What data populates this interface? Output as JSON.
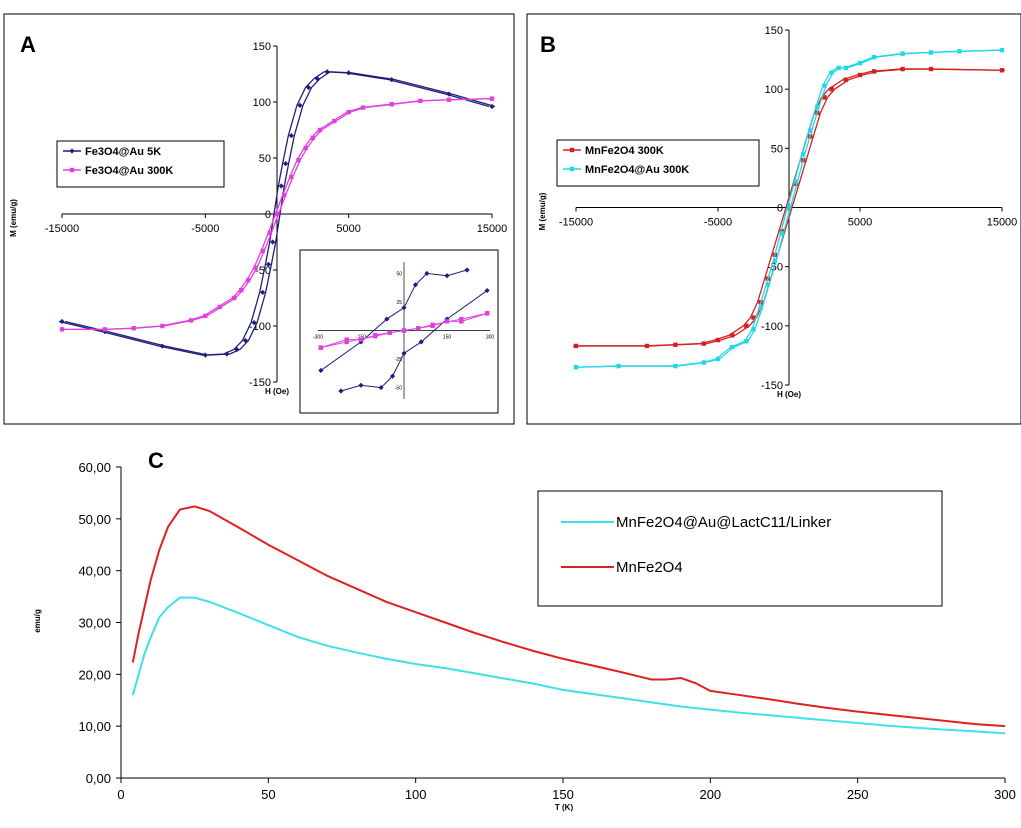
{
  "chart_data": [
    {
      "panel": "A",
      "type": "line",
      "xlabel": "H (Oe)",
      "ylabel": "M (emu/g)",
      "xlim": [
        -15000,
        15000
      ],
      "ylim": [
        -150,
        150
      ],
      "xticks": [
        -15000,
        -5000,
        5000,
        15000
      ],
      "yticks": [
        -150,
        -100,
        -50,
        0,
        50,
        100,
        150
      ],
      "xtick_labels": [
        "-15000",
        "-5000",
        "5000",
        "15000"
      ],
      "ytick_labels": [
        "-150",
        "-100",
        "-50",
        "0",
        "50",
        "100",
        "150"
      ],
      "legend": "left",
      "series": [
        {
          "name": "Fe3O4@Au 5K",
          "color": "#1f1f7a",
          "marker": "diamond",
          "points": [
            [
              -15000,
              -96
            ],
            [
              -12000,
              -105
            ],
            [
              -8000,
              -118
            ],
            [
              -5000,
              -126
            ],
            [
              -3500,
              -125
            ],
            [
              -2800,
              -121
            ],
            [
              -2200,
              -113
            ],
            [
              -1600,
              -97
            ],
            [
              -1000,
              -70
            ],
            [
              -600,
              -45
            ],
            [
              -300,
              -25
            ],
            [
              0,
              0
            ],
            [
              300,
              25
            ],
            [
              600,
              45
            ],
            [
              1000,
              70
            ],
            [
              1600,
              97
            ],
            [
              2200,
              113
            ],
            [
              2800,
              121
            ],
            [
              3500,
              127
            ],
            [
              5000,
              126
            ],
            [
              8000,
              120
            ],
            [
              12000,
              107
            ],
            [
              15000,
              96
            ]
          ]
        },
        {
          "name": "Fe3O4@Au 300K",
          "color": "#e040e0",
          "marker": "square",
          "points": [
            [
              -15000,
              -103
            ],
            [
              -12000,
              -103
            ],
            [
              -10000,
              -102
            ],
            [
              -8000,
              -100
            ],
            [
              -6000,
              -95
            ],
            [
              -5000,
              -91
            ],
            [
              -4000,
              -83
            ],
            [
              -3000,
              -75
            ],
            [
              -2500,
              -68
            ],
            [
              -2000,
              -59
            ],
            [
              -1500,
              -48
            ],
            [
              -1000,
              -33
            ],
            [
              -500,
              -17
            ],
            [
              0,
              0
            ],
            [
              500,
              17
            ],
            [
              1000,
              33
            ],
            [
              1500,
              48
            ],
            [
              2000,
              59
            ],
            [
              2500,
              68
            ],
            [
              3000,
              75
            ],
            [
              4000,
              83
            ],
            [
              5000,
              91
            ],
            [
              6000,
              95
            ],
            [
              8000,
              98
            ],
            [
              10000,
              101
            ],
            [
              12000,
              102
            ],
            [
              15000,
              103
            ]
          ]
        }
      ],
      "inset": {
        "xlim": [
          -300,
          300
        ],
        "ylim": [
          -60,
          60
        ],
        "xticks": [
          -300,
          -150,
          150,
          300
        ],
        "yticks": [
          -50,
          -25,
          25,
          50
        ],
        "xtick_labels": [
          "-300",
          "-150",
          "150",
          "300"
        ],
        "ytick_labels": [
          "-50",
          "-25",
          "25",
          "50"
        ],
        "series": [
          {
            "name": "Fe3O4@Au 5K",
            "points": [
              [
                -290,
                -35
              ],
              [
                -150,
                -10
              ],
              [
                -60,
                10
              ],
              [
                0,
                20
              ],
              [
                40,
                40
              ],
              [
                80,
                50
              ],
              [
                150,
                48
              ],
              [
                220,
                53
              ]
            ]
          },
          {
            "name": "Fe3O4@Au 5K",
            "points": [
              [
                -220,
                -53
              ],
              [
                -150,
                -48
              ],
              [
                -80,
                -50
              ],
              [
                -40,
                -40
              ],
              [
                0,
                -20
              ],
              [
                60,
                -10
              ],
              [
                150,
                10
              ],
              [
                290,
                35
              ]
            ]
          },
          {
            "name": "Fe3O4@Au 300K",
            "points": [
              [
                -290,
                -15
              ],
              [
                -200,
                -10
              ],
              [
                -100,
                -5
              ],
              [
                -50,
                -2
              ],
              [
                0,
                0
              ],
              [
                50,
                2
              ],
              [
                100,
                4
              ],
              [
                150,
                8
              ],
              [
                200,
                8
              ],
              [
                290,
                15
              ]
            ]
          },
          {
            "name": "Fe3O4@Au 300K",
            "points": [
              [
                -290,
                -15
              ],
              [
                -200,
                -8
              ],
              [
                -150,
                -8
              ],
              [
                -100,
                -4
              ],
              [
                -50,
                -2
              ],
              [
                0,
                0
              ],
              [
                50,
                2
              ],
              [
                100,
                5
              ],
              [
                200,
                10
              ],
              [
                290,
                15
              ]
            ]
          }
        ]
      }
    },
    {
      "panel": "B",
      "type": "line",
      "xlabel": "H (Oe)",
      "ylabel": "M (emu/g)",
      "xlim": [
        -15000,
        15000
      ],
      "ylim": [
        -150,
        150
      ],
      "xticks": [
        -15000,
        -5000,
        5000,
        15000
      ],
      "yticks": [
        -150,
        -100,
        -50,
        0,
        50,
        100,
        150
      ],
      "xtick_labels": [
        "-15000",
        "-5000",
        "5000",
        "15000"
      ],
      "ytick_labels": [
        "-150",
        "-100",
        "-50",
        "0",
        "50",
        "100",
        "150"
      ],
      "legend": "left",
      "series": [
        {
          "name": "MnFe2O4 300K",
          "color": "#d42020",
          "marker": "square",
          "points": [
            [
              -15000,
              -117
            ],
            [
              -10000,
              -117
            ],
            [
              -8000,
              -116
            ],
            [
              -6000,
              -115
            ],
            [
              -5000,
              -112
            ],
            [
              -4000,
              -108
            ],
            [
              -3000,
              -100
            ],
            [
              -2500,
              -93
            ],
            [
              -2000,
              -80
            ],
            [
              -1500,
              -60
            ],
            [
              -1000,
              -40
            ],
            [
              -500,
              -20
            ],
            [
              0,
              0
            ],
            [
              500,
              20
            ],
            [
              1000,
              40
            ],
            [
              1500,
              60
            ],
            [
              2000,
              80
            ],
            [
              2500,
              93
            ],
            [
              3000,
              100
            ],
            [
              4000,
              108
            ],
            [
              5000,
              112
            ],
            [
              6000,
              115
            ],
            [
              8000,
              117
            ],
            [
              10000,
              117
            ],
            [
              15000,
              116
            ]
          ]
        },
        {
          "name": "MnFe2O4@Au 300K",
          "color": "#22d8e8",
          "marker": "square",
          "points": [
            [
              -15000,
              -135
            ],
            [
              -12000,
              -134
            ],
            [
              -8000,
              -134
            ],
            [
              -6000,
              -131
            ],
            [
              -5000,
              -128
            ],
            [
              -4000,
              -118
            ],
            [
              -3000,
              -113
            ],
            [
              -2500,
              -103
            ],
            [
              -2000,
              -85
            ],
            [
              -1500,
              -65
            ],
            [
              -1000,
              -45
            ],
            [
              -500,
              -22
            ],
            [
              0,
              0
            ],
            [
              500,
              22
            ],
            [
              1000,
              45
            ],
            [
              1500,
              65
            ],
            [
              2000,
              85
            ],
            [
              2500,
              103
            ],
            [
              3000,
              114
            ],
            [
              3500,
              118
            ],
            [
              4000,
              118
            ],
            [
              5000,
              122
            ],
            [
              6000,
              127
            ],
            [
              8000,
              130
            ],
            [
              10000,
              131
            ],
            [
              12000,
              132
            ],
            [
              15000,
              133
            ]
          ]
        }
      ]
    },
    {
      "panel": "C",
      "type": "line",
      "xlabel": "T (K)",
      "ylabel": "emu/g",
      "xlim": [
        0,
        300
      ],
      "ylim": [
        0,
        60
      ],
      "xticks": [
        0,
        50,
        100,
        150,
        200,
        250,
        300
      ],
      "yticks": [
        0,
        10,
        20,
        30,
        40,
        50,
        60
      ],
      "xtick_labels": [
        "0",
        "50",
        "100",
        "150",
        "200",
        "250",
        "300"
      ],
      "ytick_labels": [
        "0,00",
        "10,00",
        "20,00",
        "30,00",
        "40,00",
        "50,00",
        "60,00"
      ],
      "legend": "top-right",
      "series": [
        {
          "name": "MnFe2O4@Au@LactC11/Linker",
          "color": "#3ee0ea",
          "points": [
            [
              4,
              16
            ],
            [
              6,
              20
            ],
            [
              8,
              24
            ],
            [
              10,
              27
            ],
            [
              13,
              31
            ],
            [
              16,
              33
            ],
            [
              20,
              34.8
            ],
            [
              25,
              34.8
            ],
            [
              30,
              34
            ],
            [
              40,
              31.8
            ],
            [
              50,
              29.5
            ],
            [
              60,
              27.2
            ],
            [
              70,
              25.5
            ],
            [
              80,
              24.2
            ],
            [
              90,
              23
            ],
            [
              100,
              22
            ],
            [
              110,
              21.2
            ],
            [
              120,
              20.2
            ],
            [
              130,
              19.2
            ],
            [
              140,
              18.2
            ],
            [
              150,
              17
            ],
            [
              160,
              16.2
            ],
            [
              170,
              15.4
            ],
            [
              180,
              14.6
            ],
            [
              190,
              13.8
            ],
            [
              200,
              13.2
            ],
            [
              210,
              12.6
            ],
            [
              220,
              12.1
            ],
            [
              230,
              11.6
            ],
            [
              240,
              11.1
            ],
            [
              250,
              10.6
            ],
            [
              260,
              10.1
            ],
            [
              270,
              9.7
            ],
            [
              280,
              9.3
            ],
            [
              290,
              9
            ],
            [
              300,
              8.6
            ]
          ]
        },
        {
          "name": "MnFe2O4",
          "color": "#e02020",
          "points": [
            [
              4,
              22.3
            ],
            [
              6,
              28
            ],
            [
              8,
              33
            ],
            [
              10,
              38
            ],
            [
              13,
              44
            ],
            [
              16,
              48.5
            ],
            [
              20,
              51.8
            ],
            [
              25,
              52.4
            ],
            [
              30,
              51.5
            ],
            [
              40,
              48.3
            ],
            [
              50,
              45
            ],
            [
              60,
              42
            ],
            [
              70,
              39
            ],
            [
              80,
              36.5
            ],
            [
              90,
              34
            ],
            [
              100,
              32
            ],
            [
              110,
              30
            ],
            [
              120,
              28
            ],
            [
              130,
              26.2
            ],
            [
              140,
              24.5
            ],
            [
              150,
              23
            ],
            [
              160,
              21.7
            ],
            [
              170,
              20.4
            ],
            [
              180,
              19
            ],
            [
              185,
              19
            ],
            [
              190,
              19.3
            ],
            [
              195,
              18.3
            ],
            [
              200,
              16.8
            ],
            [
              210,
              16
            ],
            [
              220,
              15.2
            ],
            [
              230,
              14.3
            ],
            [
              240,
              13.5
            ],
            [
              250,
              12.8
            ],
            [
              260,
              12.2
            ],
            [
              270,
              11.6
            ],
            [
              280,
              11
            ],
            [
              290,
              10.4
            ],
            [
              300,
              10
            ]
          ]
        }
      ]
    }
  ]
}
